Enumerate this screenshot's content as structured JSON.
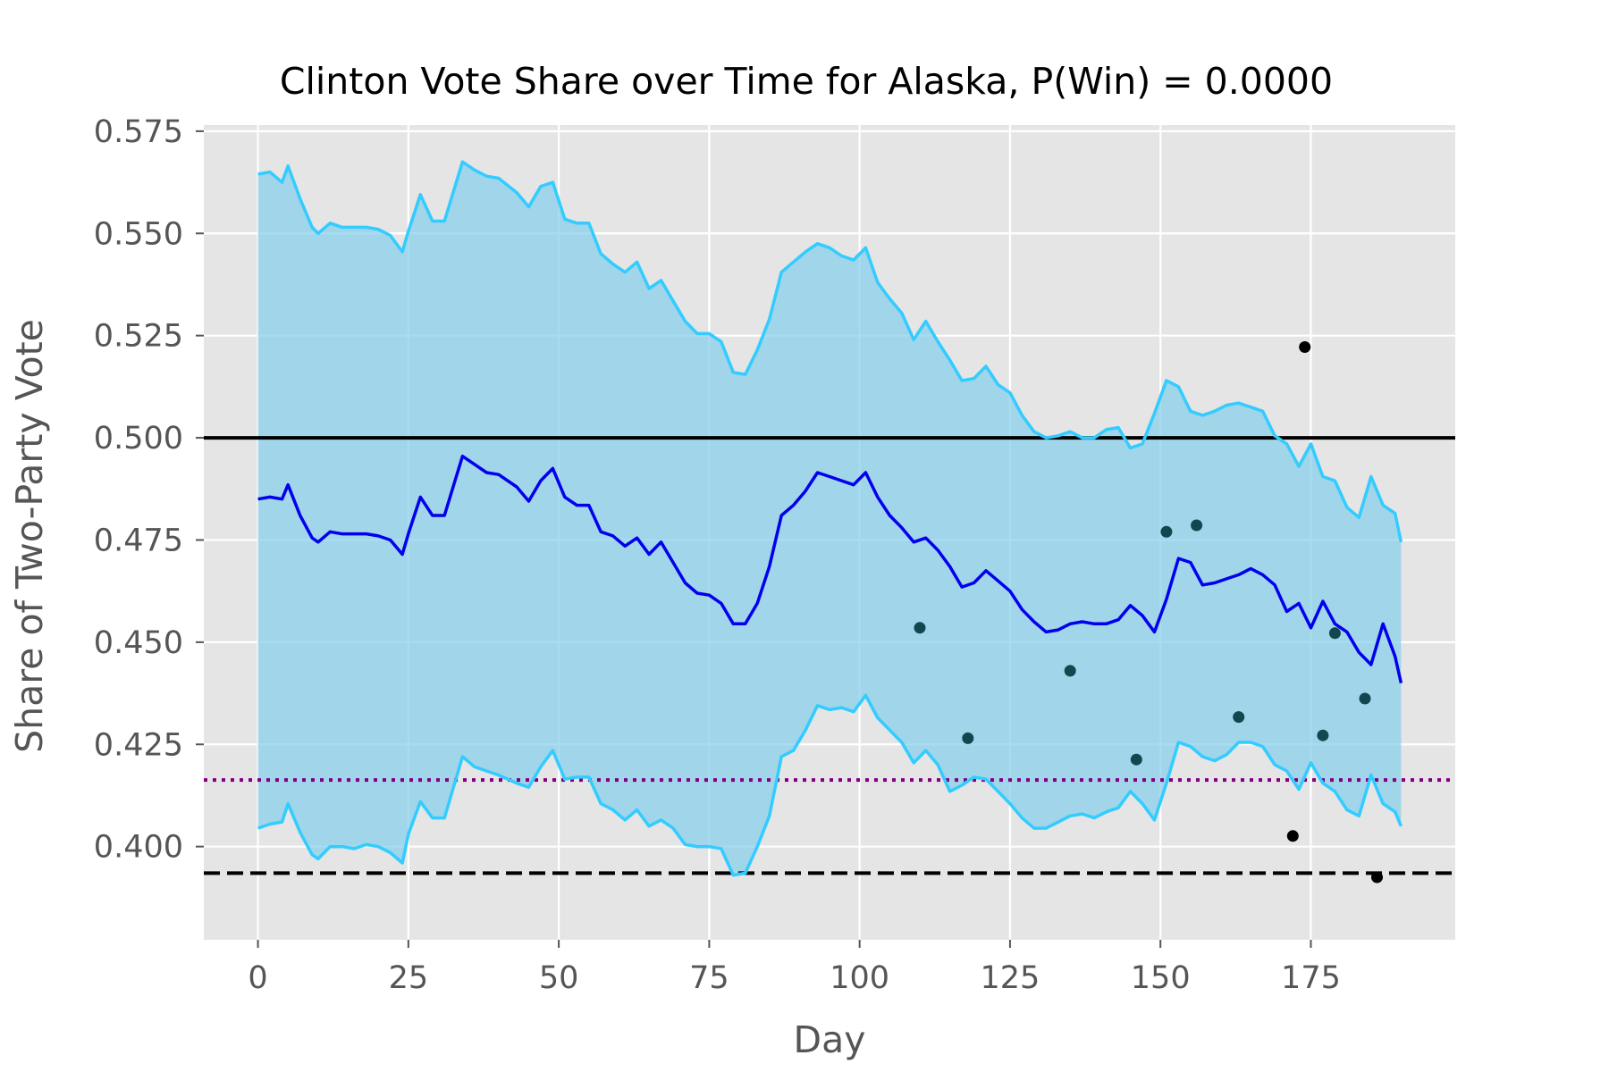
{
  "chart_data": {
    "type": "line",
    "title": "Clinton Vote Share over Time for Alaska, P(Win) = 0.0000",
    "xlabel": "Day",
    "ylabel": "Share of Two-Party Vote",
    "xlim": [
      -9,
      199
    ],
    "ylim": [
      0.3772,
      0.5765
    ],
    "xticks": [
      0,
      25,
      50,
      75,
      100,
      125,
      150,
      175
    ],
    "xtick_labels": [
      "0",
      "25",
      "50",
      "75",
      "100",
      "125",
      "150",
      "175"
    ],
    "yticks": [
      0.4,
      0.425,
      0.45,
      0.475,
      0.5,
      0.525,
      0.55,
      0.575
    ],
    "ytick_labels": [
      "0.400",
      "0.425",
      "0.450",
      "0.475",
      "0.500",
      "0.525",
      "0.550",
      "0.575"
    ],
    "grid": true,
    "colors": {
      "background": "#e5e5e5",
      "grid": "#ffffff",
      "band_fill": "#87ceeb",
      "band_edge": "#33ccff",
      "mean_line": "#0000ee",
      "poll_dot": "#13474f",
      "poll_dot_dark": "#000000",
      "purple_line": "#800080"
    },
    "series": [
      {
        "role": "mean",
        "x": [
          0,
          2,
          4,
          5,
          7,
          9,
          10,
          12,
          14,
          16,
          18,
          20,
          22,
          24,
          25,
          27,
          29,
          31,
          34,
          36,
          38,
          40,
          43,
          45,
          47,
          49,
          51,
          53,
          55,
          57,
          59,
          61,
          63,
          65,
          67,
          69,
          71,
          73,
          75,
          77,
          79,
          81,
          83,
          85,
          87,
          89,
          91,
          93,
          95,
          97,
          99,
          101,
          103,
          105,
          107,
          109,
          111,
          113,
          115,
          117,
          119,
          121,
          123,
          125,
          127,
          129,
          131,
          133,
          135,
          137,
          139,
          141,
          143,
          145,
          147,
          149,
          151,
          153,
          155,
          157,
          159,
          161,
          163,
          165,
          167,
          169,
          171,
          173,
          175,
          177,
          179,
          181,
          183,
          185,
          187,
          189,
          190
        ],
        "y": [
          0.485,
          0.4855,
          0.485,
          0.4885,
          0.481,
          0.4755,
          0.4745,
          0.477,
          0.4765,
          0.4765,
          0.4765,
          0.476,
          0.475,
          0.4715,
          0.4765,
          0.4855,
          0.481,
          0.481,
          0.4955,
          0.4935,
          0.4915,
          0.491,
          0.488,
          0.4845,
          0.4895,
          0.4925,
          0.4855,
          0.4835,
          0.4835,
          0.477,
          0.476,
          0.4735,
          0.4755,
          0.4715,
          0.4745,
          0.4695,
          0.4645,
          0.462,
          0.4615,
          0.4595,
          0.4545,
          0.4545,
          0.4595,
          0.4685,
          0.481,
          0.4835,
          0.487,
          0.4915,
          0.4905,
          0.4895,
          0.4885,
          0.4915,
          0.4855,
          0.481,
          0.478,
          0.4745,
          0.4755,
          0.4725,
          0.4685,
          0.4635,
          0.4645,
          0.4675,
          0.465,
          0.4625,
          0.458,
          0.455,
          0.4525,
          0.453,
          0.4545,
          0.455,
          0.4545,
          0.4545,
          0.4555,
          0.459,
          0.4565,
          0.4525,
          0.4605,
          0.4705,
          0.4695,
          0.464,
          0.4645,
          0.4655,
          0.4665,
          0.468,
          0.4665,
          0.464,
          0.4575,
          0.4595,
          0.4535,
          0.46,
          0.4545,
          0.4525,
          0.4475,
          0.4445,
          0.4545,
          0.4465,
          0.44
        ]
      },
      {
        "role": "upper",
        "x": [
          0,
          2,
          4,
          5,
          7,
          9,
          10,
          12,
          14,
          16,
          18,
          20,
          22,
          24,
          25,
          27,
          29,
          31,
          34,
          36,
          38,
          40,
          43,
          45,
          47,
          49,
          51,
          53,
          55,
          57,
          59,
          61,
          63,
          65,
          67,
          69,
          71,
          73,
          75,
          77,
          79,
          81,
          83,
          85,
          87,
          89,
          91,
          93,
          95,
          97,
          99,
          101,
          103,
          105,
          107,
          109,
          111,
          113,
          115,
          117,
          119,
          121,
          123,
          125,
          127,
          129,
          131,
          133,
          135,
          137,
          139,
          141,
          143,
          145,
          147,
          149,
          151,
          153,
          155,
          157,
          159,
          161,
          163,
          165,
          167,
          169,
          171,
          173,
          175,
          177,
          179,
          181,
          183,
          185,
          187,
          189,
          190
        ],
        "y": [
          0.5645,
          0.565,
          0.5625,
          0.5665,
          0.5585,
          0.5515,
          0.55,
          0.5525,
          0.5515,
          0.5515,
          0.5515,
          0.551,
          0.5495,
          0.5455,
          0.5505,
          0.5595,
          0.553,
          0.553,
          0.5675,
          0.5655,
          0.564,
          0.5635,
          0.56,
          0.5565,
          0.5615,
          0.5625,
          0.5535,
          0.5525,
          0.5525,
          0.545,
          0.5425,
          0.5405,
          0.543,
          0.5365,
          0.5385,
          0.5335,
          0.5285,
          0.5255,
          0.5255,
          0.5235,
          0.516,
          0.5155,
          0.5215,
          0.529,
          0.5405,
          0.543,
          0.5455,
          0.5475,
          0.5465,
          0.5445,
          0.5435,
          0.5465,
          0.538,
          0.534,
          0.5305,
          0.524,
          0.5285,
          0.5235,
          0.519,
          0.514,
          0.5145,
          0.5175,
          0.513,
          0.511,
          0.5055,
          0.5015,
          0.5,
          0.5005,
          0.5015,
          0.5,
          0.5,
          0.502,
          0.5025,
          0.4975,
          0.4985,
          0.506,
          0.514,
          0.5125,
          0.5065,
          0.5055,
          0.5065,
          0.508,
          0.5085,
          0.5075,
          0.5065,
          0.5005,
          0.4985,
          0.493,
          0.4985,
          0.4905,
          0.4895,
          0.483,
          0.4805,
          0.4905,
          0.4835,
          0.4815,
          0.4745
        ]
      },
      {
        "role": "lower",
        "x": [
          0,
          2,
          4,
          5,
          7,
          9,
          10,
          12,
          14,
          16,
          18,
          20,
          22,
          24,
          25,
          27,
          29,
          31,
          34,
          36,
          38,
          40,
          43,
          45,
          47,
          49,
          51,
          53,
          55,
          57,
          59,
          61,
          63,
          65,
          67,
          69,
          71,
          73,
          75,
          77,
          79,
          81,
          83,
          85,
          87,
          89,
          91,
          93,
          95,
          97,
          99,
          101,
          103,
          105,
          107,
          109,
          111,
          113,
          115,
          117,
          119,
          121,
          123,
          125,
          127,
          129,
          131,
          133,
          135,
          137,
          139,
          141,
          143,
          145,
          147,
          149,
          151,
          153,
          155,
          157,
          159,
          161,
          163,
          165,
          167,
          169,
          171,
          173,
          175,
          177,
          179,
          181,
          183,
          185,
          187,
          189,
          190
        ],
        "y": [
          0.4045,
          0.4055,
          0.406,
          0.4105,
          0.4035,
          0.398,
          0.397,
          0.4,
          0.4,
          0.3995,
          0.4005,
          0.4,
          0.3985,
          0.396,
          0.403,
          0.411,
          0.407,
          0.407,
          0.422,
          0.4195,
          0.4185,
          0.4175,
          0.4155,
          0.4145,
          0.4195,
          0.4235,
          0.4165,
          0.417,
          0.417,
          0.4105,
          0.409,
          0.4065,
          0.409,
          0.405,
          0.4065,
          0.4045,
          0.4005,
          0.4,
          0.4,
          0.3995,
          0.393,
          0.3935,
          0.4,
          0.4075,
          0.422,
          0.4235,
          0.4285,
          0.4345,
          0.4335,
          0.434,
          0.433,
          0.437,
          0.4315,
          0.4285,
          0.4255,
          0.4205,
          0.4235,
          0.42,
          0.4135,
          0.415,
          0.417,
          0.4165,
          0.4135,
          0.4105,
          0.407,
          0.4045,
          0.4045,
          0.406,
          0.4075,
          0.408,
          0.407,
          0.4085,
          0.4095,
          0.4135,
          0.4105,
          0.4065,
          0.4155,
          0.4255,
          0.4245,
          0.422,
          0.421,
          0.4225,
          0.4255,
          0.4255,
          0.4245,
          0.42,
          0.4185,
          0.414,
          0.4205,
          0.4155,
          0.4135,
          0.409,
          0.4075,
          0.4175,
          0.4105,
          0.4085,
          0.405
        ]
      },
      {
        "role": "polls",
        "x": [
          110,
          118,
          135,
          146,
          151,
          156,
          163,
          172,
          174,
          177,
          179,
          184,
          186
        ],
        "y": [
          0.4535,
          0.4265,
          0.443,
          0.4213,
          0.477,
          0.4786,
          0.4317,
          0.4026,
          0.5222,
          0.4272,
          0.4522,
          0.4362,
          0.3925
        ]
      }
    ],
    "hlines": [
      {
        "y": 0.5,
        "style": "solid",
        "color": "#000000"
      },
      {
        "y": 0.4163,
        "style": "dotted",
        "color": "#800080"
      },
      {
        "y": 0.3935,
        "style": "dashed",
        "color": "#000000"
      }
    ]
  }
}
